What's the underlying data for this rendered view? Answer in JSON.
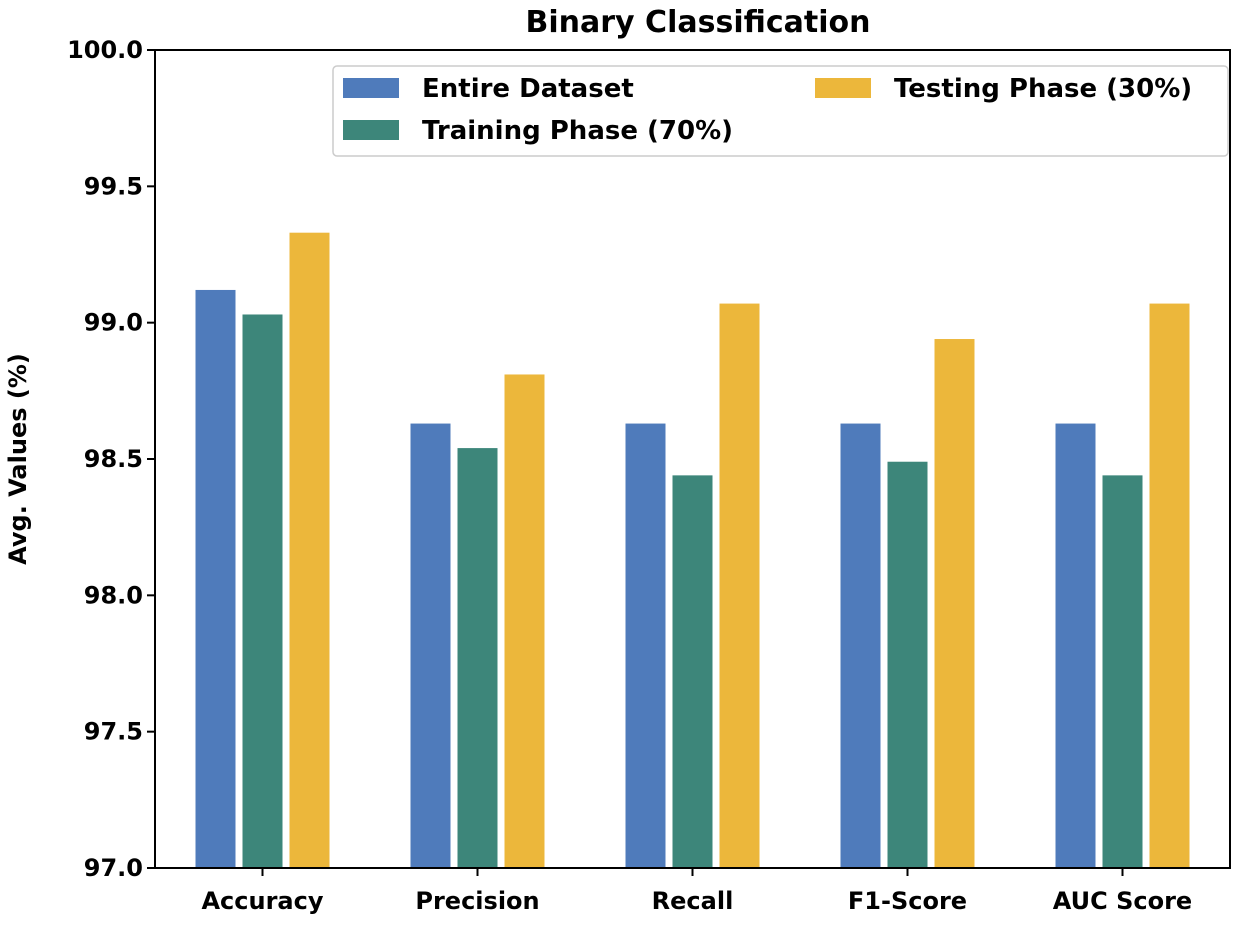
{
  "chart_data": {
    "type": "bar",
    "title": "Binary Classification",
    "xlabel": "",
    "ylabel": "Avg. Values (%)",
    "ylim": [
      97.0,
      100.0
    ],
    "yticks": [
      "97.0",
      "97.5",
      "98.0",
      "98.5",
      "99.0",
      "99.5",
      "100.0"
    ],
    "ytick_values": [
      97.0,
      97.5,
      98.0,
      98.5,
      99.0,
      99.5,
      100.0
    ],
    "categories": [
      "Accuracy",
      "Precision",
      "Recall",
      "F1-Score",
      "AUC Score"
    ],
    "series": [
      {
        "name": "Entire Dataset",
        "color": "#4f7bbb",
        "values": [
          99.12,
          98.63,
          98.63,
          98.63,
          98.63
        ]
      },
      {
        "name": "Training Phase (70%)",
        "color": "#3d867a",
        "values": [
          99.03,
          98.54,
          98.44,
          98.49,
          98.44
        ]
      },
      {
        "name": "Testing Phase (30%)",
        "color": "#ecb73b",
        "values": [
          99.33,
          98.81,
          99.07,
          98.94,
          99.07
        ]
      }
    ],
    "grid": false,
    "legend_position": "top-right"
  }
}
